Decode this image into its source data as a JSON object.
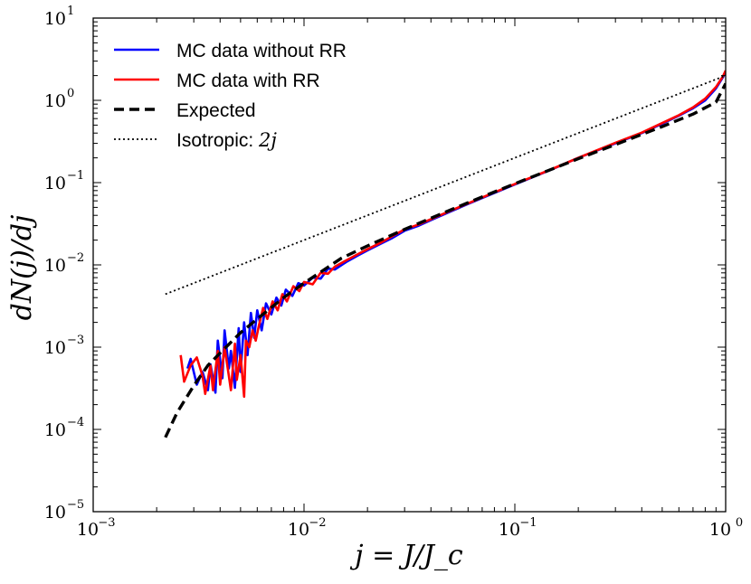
{
  "chart_data": {
    "type": "line",
    "xscale": "log",
    "yscale": "log",
    "xlim": [
      0.001,
      1
    ],
    "ylim": [
      1e-05,
      10
    ],
    "grid": false,
    "xlabel": "j = J/J_c",
    "ylabel": "dN(j)/dj",
    "x_ticks": [
      {
        "value": 0.001,
        "base": "10",
        "exp": "−3"
      },
      {
        "value": 0.01,
        "base": "10",
        "exp": "−2"
      },
      {
        "value": 0.1,
        "base": "10",
        "exp": "−1"
      },
      {
        "value": 1,
        "base": "10",
        "exp": "0"
      }
    ],
    "y_ticks": [
      {
        "value": 1e-05,
        "base": "10",
        "exp": "−5"
      },
      {
        "value": 0.0001,
        "base": "10",
        "exp": "−4"
      },
      {
        "value": 0.001,
        "base": "10",
        "exp": "−3"
      },
      {
        "value": 0.01,
        "base": "10",
        "exp": "−2"
      },
      {
        "value": 0.1,
        "base": "10",
        "exp": "−1"
      },
      {
        "value": 1,
        "base": "10",
        "exp": "0"
      },
      {
        "value": 10,
        "base": "10",
        "exp": "1"
      }
    ],
    "legend": {
      "placement": "top-left",
      "entries": [
        {
          "label": "MC data without RR",
          "color": "#0000ff",
          "style": "solid"
        },
        {
          "label": "MC data with RR",
          "color": "#ff0000",
          "style": "solid"
        },
        {
          "label": "Expected",
          "color": "#000000",
          "style": "dashed"
        },
        {
          "label": "Isotropic: ",
          "math": "2j",
          "color": "#000000",
          "style": "dotted"
        }
      ]
    },
    "series": [
      {
        "name": "MC data without RR",
        "color": "#0000ff",
        "style": "solid",
        "points": [
          [
            0.0028,
            0.00055
          ],
          [
            0.0029,
            0.00072
          ],
          [
            0.0031,
            0.00035
          ],
          [
            0.0033,
            0.0005
          ],
          [
            0.0035,
            0.0003
          ],
          [
            0.0036,
            0.00062
          ],
          [
            0.0038,
            0.00028
          ],
          [
            0.0039,
            0.0012
          ],
          [
            0.0041,
            0.00042
          ],
          [
            0.0042,
            0.0016
          ],
          [
            0.0044,
            0.00055
          ],
          [
            0.0045,
            0.0009
          ],
          [
            0.0047,
            0.00032
          ],
          [
            0.0049,
            0.0017
          ],
          [
            0.005,
            0.0005
          ],
          [
            0.0052,
            0.002
          ],
          [
            0.0054,
            0.0008
          ],
          [
            0.0056,
            0.0026
          ],
          [
            0.0058,
            0.0013
          ],
          [
            0.006,
            0.0028
          ],
          [
            0.0063,
            0.0016
          ],
          [
            0.0066,
            0.0034
          ],
          [
            0.007,
            0.0025
          ],
          [
            0.0074,
            0.004
          ],
          [
            0.0078,
            0.0032
          ],
          [
            0.0082,
            0.005
          ],
          [
            0.0088,
            0.0042
          ],
          [
            0.0094,
            0.006
          ],
          [
            0.01,
            0.0056
          ],
          [
            0.011,
            0.007
          ],
          [
            0.012,
            0.0068
          ],
          [
            0.013,
            0.009
          ],
          [
            0.014,
            0.0088
          ],
          [
            0.016,
            0.011
          ],
          [
            0.018,
            0.013
          ],
          [
            0.02,
            0.015
          ],
          [
            0.023,
            0.018
          ],
          [
            0.026,
            0.021
          ],
          [
            0.03,
            0.026
          ],
          [
            0.035,
            0.03
          ],
          [
            0.04,
            0.035
          ],
          [
            0.05,
            0.045
          ],
          [
            0.06,
            0.055
          ],
          [
            0.08,
            0.075
          ],
          [
            0.1,
            0.095
          ],
          [
            0.15,
            0.145
          ],
          [
            0.2,
            0.2
          ],
          [
            0.3,
            0.3
          ],
          [
            0.4,
            0.4
          ],
          [
            0.5,
            0.52
          ],
          [
            0.6,
            0.65
          ],
          [
            0.7,
            0.8
          ],
          [
            0.8,
            1.0
          ],
          [
            0.9,
            1.4
          ],
          [
            0.97,
            1.9
          ],
          [
            1.0,
            2.2
          ]
        ]
      },
      {
        "name": "MC data with RR",
        "color": "#ff0000",
        "style": "solid",
        "points": [
          [
            0.0026,
            0.0008
          ],
          [
            0.0027,
            0.00038
          ],
          [
            0.0029,
            0.0006
          ],
          [
            0.0031,
            0.00075
          ],
          [
            0.0033,
            0.00045
          ],
          [
            0.0034,
            0.00027
          ],
          [
            0.0036,
            0.0006
          ],
          [
            0.0037,
            0.0003
          ],
          [
            0.0039,
            0.0009
          ],
          [
            0.004,
            0.00035
          ],
          [
            0.0042,
            0.001
          ],
          [
            0.0044,
            0.00045
          ],
          [
            0.0045,
            0.0003
          ],
          [
            0.0047,
            0.0011
          ],
          [
            0.0048,
            0.0004
          ],
          [
            0.005,
            0.0008
          ],
          [
            0.0052,
            0.00025
          ],
          [
            0.0053,
            0.0012
          ],
          [
            0.0055,
            0.001
          ],
          [
            0.0057,
            0.0016
          ],
          [
            0.0059,
            0.0012
          ],
          [
            0.0061,
            0.0018
          ],
          [
            0.0064,
            0.003
          ],
          [
            0.0067,
            0.0022
          ],
          [
            0.0071,
            0.0036
          ],
          [
            0.0075,
            0.0028
          ],
          [
            0.0079,
            0.0044
          ],
          [
            0.0083,
            0.0036
          ],
          [
            0.0089,
            0.0055
          ],
          [
            0.0095,
            0.0048
          ],
          [
            0.01,
            0.0062
          ],
          [
            0.011,
            0.0058
          ],
          [
            0.012,
            0.008
          ],
          [
            0.013,
            0.0078
          ],
          [
            0.014,
            0.0095
          ],
          [
            0.016,
            0.0115
          ],
          [
            0.018,
            0.0135
          ],
          [
            0.02,
            0.0155
          ],
          [
            0.023,
            0.0185
          ],
          [
            0.026,
            0.022
          ],
          [
            0.03,
            0.027
          ],
          [
            0.035,
            0.031
          ],
          [
            0.04,
            0.036
          ],
          [
            0.05,
            0.046
          ],
          [
            0.06,
            0.056
          ],
          [
            0.08,
            0.076
          ],
          [
            0.1,
            0.096
          ],
          [
            0.15,
            0.146
          ],
          [
            0.2,
            0.2
          ],
          [
            0.3,
            0.305
          ],
          [
            0.4,
            0.405
          ],
          [
            0.5,
            0.53
          ],
          [
            0.6,
            0.66
          ],
          [
            0.7,
            0.82
          ],
          [
            0.8,
            1.05
          ],
          [
            0.9,
            1.45
          ],
          [
            0.97,
            1.95
          ],
          [
            1.0,
            2.3
          ]
        ]
      },
      {
        "name": "Expected",
        "color": "#000000",
        "style": "dashed",
        "points": [
          [
            0.0022,
            8e-05
          ],
          [
            0.0025,
            0.00016
          ],
          [
            0.003,
            0.00034
          ],
          [
            0.0035,
            0.0006
          ],
          [
            0.004,
            0.00085
          ],
          [
            0.005,
            0.0015
          ],
          [
            0.006,
            0.0022
          ],
          [
            0.008,
            0.004
          ],
          [
            0.01,
            0.006
          ],
          [
            0.015,
            0.012
          ],
          [
            0.02,
            0.017
          ],
          [
            0.03,
            0.027
          ],
          [
            0.05,
            0.047
          ],
          [
            0.07,
            0.067
          ],
          [
            0.1,
            0.097
          ],
          [
            0.2,
            0.195
          ],
          [
            0.3,
            0.29
          ],
          [
            0.5,
            0.48
          ],
          [
            0.7,
            0.68
          ],
          [
            0.9,
            0.95
          ],
          [
            1.0,
            1.6
          ]
        ]
      },
      {
        "name": "Isotropic: 2j",
        "color": "#000000",
        "style": "dotted",
        "points": [
          [
            0.0022,
            0.0044
          ],
          [
            1.0,
            2.0
          ]
        ]
      }
    ]
  }
}
